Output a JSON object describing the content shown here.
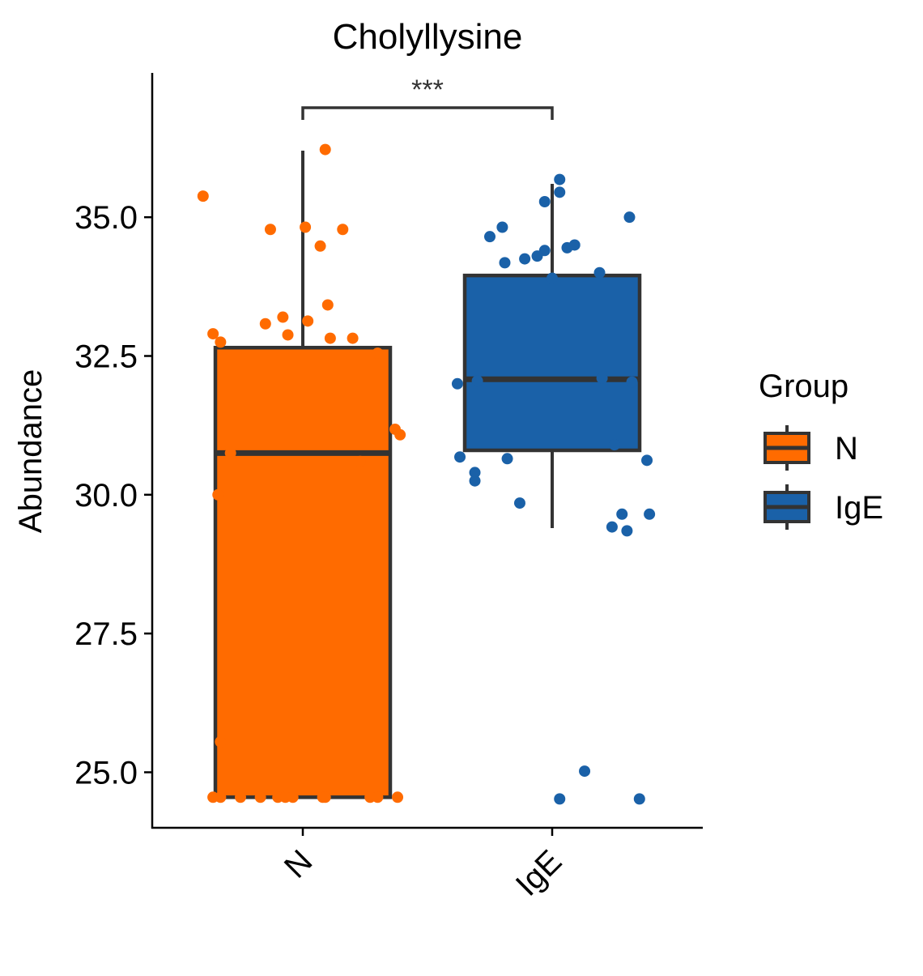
{
  "chart_data": {
    "type": "box",
    "title": "Cholyllysine",
    "xlabel": "",
    "ylabel": "Abundance",
    "categories": [
      "N",
      "IgE"
    ],
    "ylim": [
      24.0,
      37.6
    ],
    "yticks": [
      "25.0",
      "27.5",
      "30.0",
      "32.5",
      "35.0"
    ],
    "yticks_values": [
      25.0,
      27.5,
      30.0,
      32.5,
      35.0
    ],
    "legend": {
      "title": "Group",
      "position": "right",
      "entries": [
        {
          "label": "N",
          "color": "#FF6B00"
        },
        {
          "label": "IgE",
          "color": "#1A61A8"
        }
      ]
    },
    "significance": {
      "between": [
        "N",
        "IgE"
      ],
      "label": "***"
    },
    "boxes": [
      {
        "category": "N",
        "color": "#FF6B00",
        "q1": 24.55,
        "median": 30.75,
        "q3": 32.65,
        "whisker_low": 24.55,
        "whisker_high": 36.2
      },
      {
        "category": "IgE",
        "color": "#1A61A8",
        "q1": 30.8,
        "median": 32.08,
        "q3": 33.95,
        "whisker_low": 29.4,
        "whisker_high": 35.6
      }
    ],
    "series": [
      {
        "name": "N",
        "color": "#FF6B00",
        "points": [
          [
            -0.4,
            35.38
          ],
          [
            -0.36,
            32.9
          ],
          [
            -0.33,
            32.75
          ],
          [
            -0.13,
            34.78
          ],
          [
            -0.15,
            33.08
          ],
          [
            -0.08,
            33.2
          ],
          [
            -0.06,
            32.88
          ],
          [
            0.01,
            34.82
          ],
          [
            0.02,
            33.13
          ],
          [
            0.07,
            34.48
          ],
          [
            0.09,
            36.22
          ],
          [
            0.1,
            33.42
          ],
          [
            0.11,
            32.82
          ],
          [
            0.16,
            34.78
          ],
          [
            0.2,
            32.82
          ],
          [
            0.3,
            32.55
          ],
          [
            0.37,
            31.18
          ],
          [
            0.39,
            31.08
          ],
          [
            -0.29,
            30.75
          ],
          [
            -0.34,
            30.0
          ],
          [
            0.23,
            30.6
          ],
          [
            -0.33,
            25.55
          ],
          [
            -0.36,
            24.55
          ],
          [
            -0.33,
            24.55
          ],
          [
            -0.25,
            24.55
          ],
          [
            -0.17,
            24.55
          ],
          [
            -0.1,
            24.55
          ],
          [
            -0.07,
            24.55
          ],
          [
            -0.04,
            24.55
          ],
          [
            0.08,
            24.55
          ],
          [
            0.09,
            24.55
          ],
          [
            0.27,
            24.55
          ],
          [
            0.3,
            24.55
          ],
          [
            0.38,
            24.55
          ]
        ]
      },
      {
        "name": "IgE",
        "color": "#1A61A8",
        "points": [
          [
            0.03,
            35.68
          ],
          [
            0.03,
            35.45
          ],
          [
            -0.03,
            35.28
          ],
          [
            0.31,
            35.0
          ],
          [
            -0.2,
            34.82
          ],
          [
            -0.25,
            34.65
          ],
          [
            0.09,
            34.5
          ],
          [
            0.06,
            34.45
          ],
          [
            -0.03,
            34.4
          ],
          [
            -0.06,
            34.3
          ],
          [
            -0.11,
            34.25
          ],
          [
            -0.19,
            34.18
          ],
          [
            0.19,
            34.0
          ],
          [
            0.0,
            33.9
          ],
          [
            -0.38,
            32.0
          ],
          [
            -0.3,
            32.05
          ],
          [
            0.2,
            32.1
          ],
          [
            0.32,
            32.03
          ],
          [
            0.25,
            30.9
          ],
          [
            -0.37,
            30.68
          ],
          [
            -0.18,
            30.65
          ],
          [
            0.38,
            30.62
          ],
          [
            -0.31,
            30.4
          ],
          [
            -0.31,
            30.25
          ],
          [
            -0.13,
            29.85
          ],
          [
            0.28,
            29.65
          ],
          [
            0.39,
            29.65
          ],
          [
            0.24,
            29.42
          ],
          [
            0.3,
            29.35
          ],
          [
            0.13,
            25.02
          ],
          [
            0.03,
            24.52
          ],
          [
            0.35,
            24.52
          ]
        ]
      }
    ]
  }
}
